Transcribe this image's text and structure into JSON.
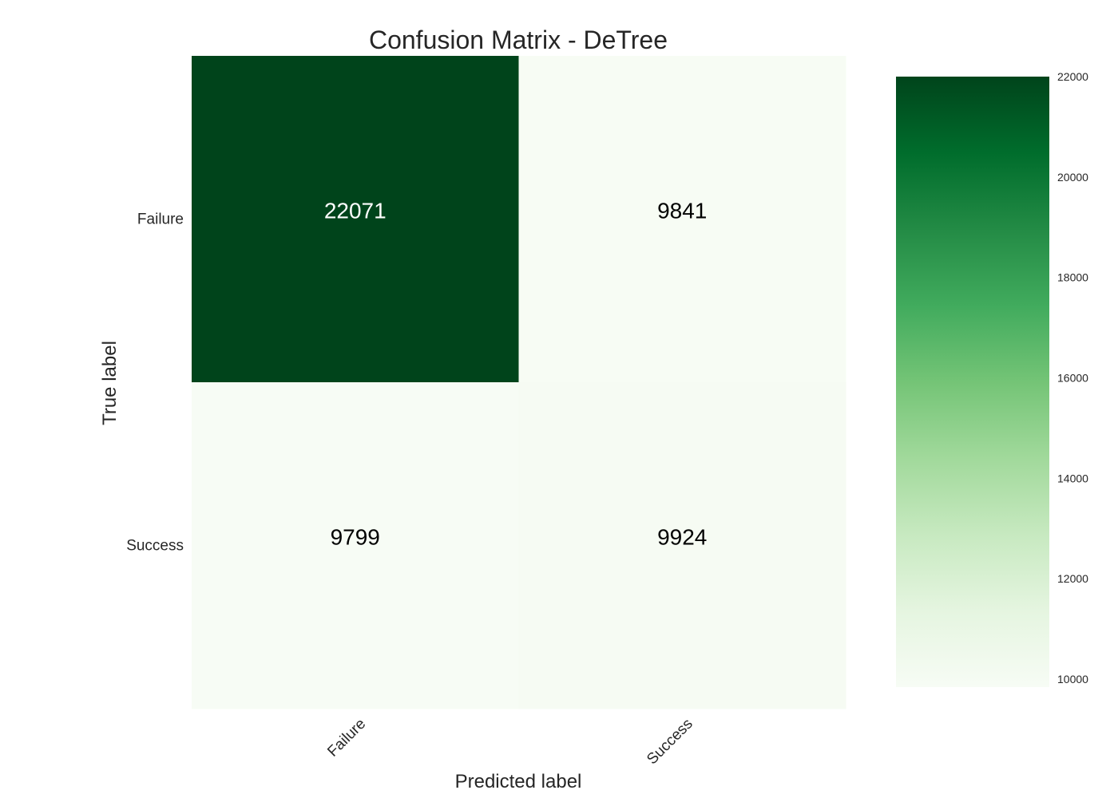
{
  "chart_data": {
    "type": "heatmap",
    "title": "Confusion Matrix - DeTree",
    "xlabel": "Predicted label",
    "ylabel": "True label",
    "x_categories": [
      "Failure",
      "Success"
    ],
    "y_categories": [
      "Failure",
      "Success"
    ],
    "values": [
      [
        22071,
        9841
      ],
      [
        9799,
        9924
      ]
    ],
    "colormap": "Greens",
    "colorbar": {
      "min": 9799,
      "max": 22071,
      "ticks": [
        10000,
        12000,
        14000,
        16000,
        18000,
        20000,
        22000
      ]
    },
    "grid": false,
    "legend": "colorbar-right"
  }
}
